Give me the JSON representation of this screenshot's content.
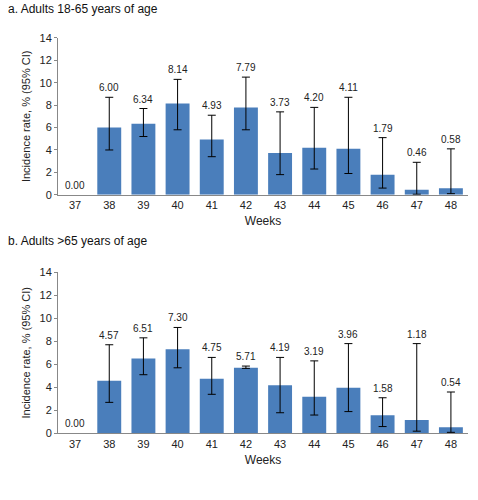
{
  "chart_data": [
    {
      "type": "bar",
      "title": "a. Adults 18-65 years of age",
      "x_label": "Weeks",
      "y_label": "Incidence rate, % (95% CI)",
      "categories": [
        "37",
        "38",
        "39",
        "40",
        "41",
        "42",
        "43",
        "44",
        "45",
        "46",
        "47",
        "48"
      ],
      "values": [
        0,
        6,
        6.34,
        8.14,
        4.93,
        7.79,
        3.73,
        4.2,
        4.11,
        1.79,
        0.46,
        0.58
      ],
      "value_labels": [
        "0.00",
        "6.00",
        "6.34",
        "8.14",
        "4.93",
        "7.79",
        "3.73",
        "4.20",
        "4.11",
        "1.79",
        "0.46",
        "0.58"
      ],
      "ci_lower": [
        null,
        4.0,
        5.2,
        5.8,
        3.4,
        5.8,
        1.8,
        2.3,
        1.9,
        0.6,
        0.05,
        0.1
      ],
      "ci_upper": [
        null,
        8.7,
        7.7,
        10.3,
        7.1,
        10.5,
        7.4,
        7.8,
        8.7,
        5.1,
        2.9,
        4.1
      ],
      "color": "#4a7ebb",
      "ylim": [
        0,
        14
      ],
      "yticks": [
        0,
        2,
        4,
        6,
        8,
        10,
        12,
        14
      ],
      "grid": false,
      "data_labels": true
    },
    {
      "type": "bar",
      "title": "b. Adults >65 years of age",
      "x_label": "Weeks",
      "y_label": "Incidence rate, % (95% CI)",
      "categories": [
        "37",
        "38",
        "39",
        "40",
        "41",
        "42",
        "43",
        "44",
        "45",
        "46",
        "47",
        "48"
      ],
      "values": [
        0,
        4.57,
        6.51,
        7.3,
        4.75,
        5.71,
        4.19,
        3.19,
        3.96,
        1.58,
        1.18,
        0.54
      ],
      "value_labels": [
        "0.00",
        "4.57",
        "6.51",
        "7.30",
        "4.75",
        "5.71",
        "4.19",
        "3.19",
        "3.96",
        "1.58",
        "1.18",
        "0.54"
      ],
      "ci_lower": [
        null,
        2.7,
        5.1,
        5.7,
        3.4,
        5.65,
        1.8,
        1.6,
        1.9,
        0.6,
        0.2,
        0.1
      ],
      "ci_upper": [
        null,
        7.7,
        8.3,
        9.2,
        6.6,
        5.85,
        6.6,
        6.3,
        7.8,
        3.1,
        7.8,
        3.6
      ],
      "color": "#4a7ebb",
      "ylim": [
        0,
        14
      ],
      "yticks": [
        0,
        2,
        4,
        6,
        8,
        10,
        12,
        14
      ],
      "grid": false,
      "data_labels": true
    }
  ]
}
